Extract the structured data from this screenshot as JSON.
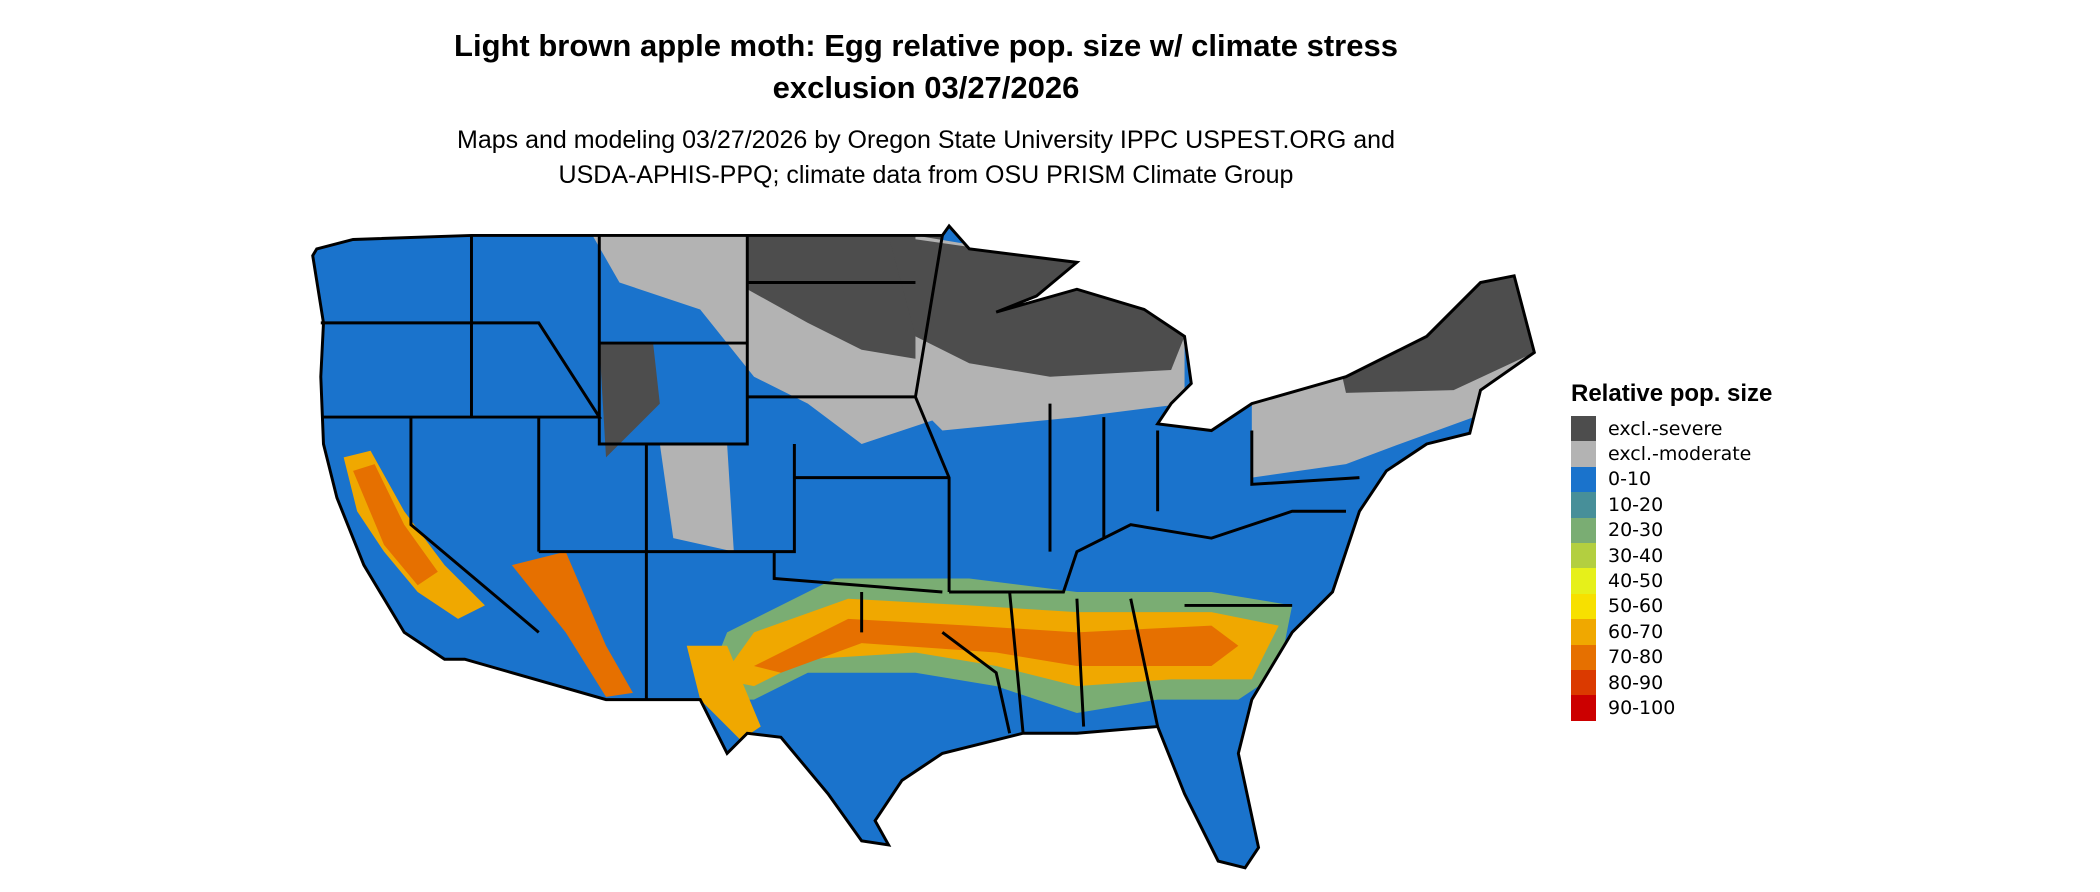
{
  "title_line1": "Light brown apple moth: Egg relative pop. size w/ climate stress",
  "title_line2": "exclusion 03/27/2026",
  "subtitle_line1": "Maps and modeling 03/27/2026 by Oregon State University IPPC USPEST.ORG and",
  "subtitle_line2": "USDA-APHIS-PPQ; climate data from OSU PRISM Climate Group",
  "legend": {
    "title": "Relative pop. size",
    "items": [
      {
        "label": "excl.-severe",
        "color": "#4d4d4d"
      },
      {
        "label": "excl.-moderate",
        "color": "#b3b3b3"
      },
      {
        "label": "0-10",
        "color": "#1a73cc"
      },
      {
        "label": "10-20",
        "color": "#478f99"
      },
      {
        "label": "20-30",
        "color": "#7aad73"
      },
      {
        "label": "30-40",
        "color": "#b3cf40"
      },
      {
        "label": "40-50",
        "color": "#e6f01a"
      },
      {
        "label": "50-60",
        "color": "#f7e000"
      },
      {
        "label": "60-70",
        "color": "#f0a800"
      },
      {
        "label": "70-80",
        "color": "#e67000"
      },
      {
        "label": "80-90",
        "color": "#db3a00"
      },
      {
        "label": "90-100",
        "color": "#cc0000"
      }
    ]
  }
}
